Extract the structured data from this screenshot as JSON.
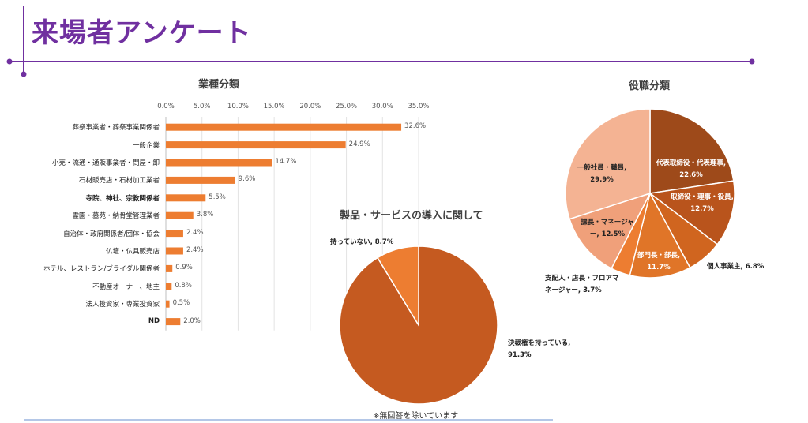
{
  "page": {
    "title": "来場者アンケート",
    "note": "※無回答を除いています"
  },
  "colors": {
    "accent": "#7030a0",
    "bar": "#ed7d31"
  },
  "chart_data": [
    {
      "type": "bar",
      "orientation": "horizontal",
      "title": "業種分類",
      "categories": [
        "葬祭事業者・葬祭事業関係者",
        "一般企業",
        "小売・流通・通販事業者・問屋・卸",
        "石材販売店・石材加工業者",
        "寺院、神社、宗教関係者",
        "霊園・墓苑・納骨堂管理業者",
        "自治体・政府関係者/団体・協会",
        "仏壇・仏具販売店",
        "ホテル、レストラン/ブライダル関係者",
        "不動産オーナー、地主",
        "法人投資家・専業投資家",
        "ND"
      ],
      "values": [
        32.6,
        24.9,
        14.7,
        9.6,
        5.5,
        3.8,
        2.4,
        2.4,
        0.9,
        0.8,
        0.5,
        2.0
      ],
      "value_labels": [
        "32.6%",
        "24.9%",
        "14.7%",
        "9.6%",
        "5.5%",
        "3.8%",
        "2.4%",
        "2.4%",
        "0.9%",
        "0.8%",
        "0.5%",
        "2.0%"
      ],
      "ticks": [
        "0.0%",
        "5.0%",
        "10.0%",
        "15.0%",
        "20.0%",
        "25.0%",
        "30.0%",
        "35.0%"
      ],
      "xlim": [
        0,
        35
      ],
      "grid": true
    },
    {
      "type": "pie",
      "title": "製品・サービスの導入に関して",
      "slices": [
        {
          "label": "決裁権を持っている, 91.3%",
          "value": 91.3,
          "color": "#c55a20"
        },
        {
          "label": "持っていない, 8.7%",
          "value": 8.7,
          "color": "#ed7d31"
        }
      ]
    },
    {
      "type": "pie",
      "title": "役職分類",
      "slices": [
        {
          "label": "代表取締役・代表理事, 22.6%",
          "value": 22.6,
          "color": "#9e4a1a"
        },
        {
          "label": "取締役・理事・役員, 12.7%",
          "value": 12.7,
          "color": "#b9541c"
        },
        {
          "label": "個人事業主, 6.8%",
          "value": 6.8,
          "color": "#d0651f"
        },
        {
          "label": "部門長・部長, 11.7%",
          "value": 11.7,
          "color": "#e07528"
        },
        {
          "label": "支配人・店長・フロアマネージャー, 3.7%",
          "value": 3.7,
          "color": "#ed7d31"
        },
        {
          "label": "課長・マネージャー, 12.5%",
          "value": 12.5,
          "color": "#f0a07a"
        },
        {
          "label": "一般社員・職員, 29.9%",
          "value": 29.9,
          "color": "#f4b393"
        }
      ]
    }
  ]
}
